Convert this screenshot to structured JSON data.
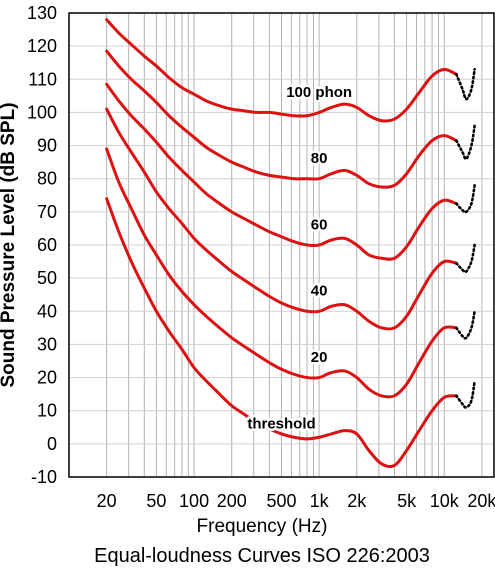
{
  "chart_data": {
    "type": "line",
    "title": "Equal-loudness Curves ISO 226:2003",
    "xlabel": "Frequency (Hz)",
    "ylabel": "Sound Pressure Level (dB SPL)",
    "x_scale": "log",
    "xlim": [
      10,
      25000
    ],
    "ylim": [
      -10,
      130
    ],
    "grid": true,
    "x_ticks": [
      {
        "value": 20,
        "label": "20"
      },
      {
        "value": 50,
        "label": "50"
      },
      {
        "value": 100,
        "label": "100"
      },
      {
        "value": 200,
        "label": "200"
      },
      {
        "value": 500,
        "label": "500"
      },
      {
        "value": 1000,
        "label": "1k"
      },
      {
        "value": 2000,
        "label": "2k"
      },
      {
        "value": 5000,
        "label": "5k"
      },
      {
        "value": 10000,
        "label": "10k"
      },
      {
        "value": 20000,
        "label": "20k"
      }
    ],
    "y_ticks": [
      -10,
      0,
      10,
      20,
      30,
      40,
      50,
      60,
      70,
      80,
      90,
      100,
      110,
      120,
      130
    ],
    "series_color": "#dd1111",
    "series": [
      {
        "name": "threshold",
        "x": [
          20,
          25,
          31.5,
          40,
          50,
          63,
          80,
          100,
          125,
          160,
          200,
          250,
          315,
          400,
          500,
          630,
          800,
          1000,
          1250,
          1600,
          2000,
          2500,
          3150,
          4000,
          5000,
          6300,
          8000,
          10000,
          12500
        ],
        "y": [
          74,
          64,
          55,
          47,
          40,
          34,
          28.5,
          23,
          19,
          15,
          11.5,
          9,
          6.5,
          4.5,
          3,
          2,
          1.5,
          2,
          3,
          4,
          3,
          -2,
          -6,
          -6.5,
          -2,
          4,
          10,
          14,
          14.5
        ],
        "extension_x": [
          12500,
          14000,
          15000,
          16500,
          17500
        ],
        "extension_y": [
          14.5,
          12,
          11,
          13,
          19
        ]
      },
      {
        "name": "20",
        "x": [
          20,
          25,
          31.5,
          40,
          50,
          63,
          80,
          100,
          125,
          160,
          200,
          250,
          315,
          400,
          500,
          630,
          800,
          1000,
          1250,
          1600,
          2000,
          2500,
          3150,
          4000,
          5000,
          6300,
          8000,
          10000,
          12500
        ],
        "y": [
          89,
          79,
          71,
          63,
          57,
          51,
          46,
          42,
          38.5,
          35,
          32,
          29.5,
          27,
          24.5,
          22.5,
          21,
          20,
          20,
          21.5,
          22,
          20,
          16.5,
          14.5,
          14.5,
          18,
          24.5,
          31,
          35,
          35
        ],
        "extension_x": [
          12500,
          14000,
          15000,
          16500,
          17500
        ],
        "extension_y": [
          35,
          32.5,
          32,
          35,
          40
        ]
      },
      {
        "name": "40",
        "x": [
          20,
          25,
          31.5,
          40,
          50,
          63,
          80,
          100,
          125,
          160,
          200,
          250,
          315,
          400,
          500,
          630,
          800,
          1000,
          1250,
          1600,
          2000,
          2500,
          3150,
          4000,
          5000,
          6300,
          8000,
          10000,
          12500
        ],
        "y": [
          101,
          94,
          88,
          82,
          76,
          71,
          66.5,
          62,
          58.5,
          55,
          52,
          49.5,
          47,
          44.5,
          42.5,
          41,
          40,
          40,
          41.5,
          42,
          40,
          37,
          35,
          35,
          38.5,
          45,
          51.5,
          55,
          54.5
        ],
        "extension_x": [
          12500,
          14000,
          15000,
          16500,
          17500
        ],
        "extension_y": [
          54.5,
          52.5,
          52,
          55,
          60
        ]
      },
      {
        "name": "60",
        "x": [
          20,
          25,
          31.5,
          40,
          50,
          63,
          80,
          100,
          125,
          160,
          200,
          250,
          315,
          400,
          500,
          630,
          800,
          1000,
          1250,
          1600,
          2000,
          2500,
          3150,
          4000,
          5000,
          6300,
          8000,
          10000,
          12500
        ],
        "y": [
          108.5,
          103.5,
          99,
          95,
          91,
          86.5,
          82.5,
          79,
          75.5,
          72.5,
          70,
          68,
          66,
          64,
          62.5,
          61,
          60,
          60,
          61.5,
          62,
          60,
          57,
          56,
          56,
          59.5,
          65.5,
          71,
          73.5,
          72.5
        ],
        "extension_x": [
          12500,
          14000,
          15000,
          16500,
          17500
        ],
        "extension_y": [
          72.5,
          70.5,
          70,
          72.5,
          78
        ]
      },
      {
        "name": "80",
        "x": [
          20,
          25,
          31.5,
          40,
          50,
          63,
          80,
          100,
          125,
          160,
          200,
          250,
          315,
          400,
          500,
          630,
          800,
          1000,
          1250,
          1600,
          2000,
          2500,
          3150,
          4000,
          5000,
          6300,
          8000,
          10000,
          12500
        ],
        "y": [
          118.5,
          114,
          110,
          106.5,
          103,
          99,
          95.5,
          92.5,
          89.5,
          87,
          85,
          83.5,
          82,
          81,
          80.5,
          80,
          80,
          80,
          81.5,
          82.5,
          81,
          78.5,
          77.5,
          78,
          81.5,
          87,
          91.5,
          93,
          91.5
        ],
        "extension_x": [
          12500,
          14000,
          15000,
          16500,
          17500
        ],
        "extension_y": [
          91.5,
          88,
          86,
          90,
          96
        ]
      },
      {
        "name": "100 phon",
        "x": [
          20,
          25,
          31.5,
          40,
          50,
          63,
          80,
          100,
          125,
          160,
          200,
          250,
          315,
          400,
          500,
          630,
          800,
          1000,
          1250,
          1600,
          2000,
          2500,
          3150,
          4000,
          5000,
          6300,
          8000,
          10000,
          12500
        ],
        "y": [
          128,
          124,
          120.5,
          117,
          114,
          110.5,
          107.5,
          105.5,
          103.5,
          102,
          101,
          100.5,
          100,
          100,
          99.5,
          99,
          99,
          100,
          101.5,
          102.5,
          101.5,
          99,
          97.5,
          98,
          101,
          106,
          111,
          113,
          111.5
        ],
        "extension_x": [
          12500,
          14000,
          15000,
          16500,
          17500
        ],
        "extension_y": [
          111.5,
          107,
          104,
          107,
          113
        ]
      }
    ],
    "curve_labels": [
      {
        "text": "100 phon",
        "x": 1000,
        "y": 105
      },
      {
        "text": "80",
        "x": 1000,
        "y": 85
      },
      {
        "text": "60",
        "x": 1000,
        "y": 65
      },
      {
        "text": "40",
        "x": 1000,
        "y": 45
      },
      {
        "text": "20",
        "x": 1000,
        "y": 25
      },
      {
        "text": "threshold",
        "x": 500,
        "y": 5
      }
    ]
  }
}
